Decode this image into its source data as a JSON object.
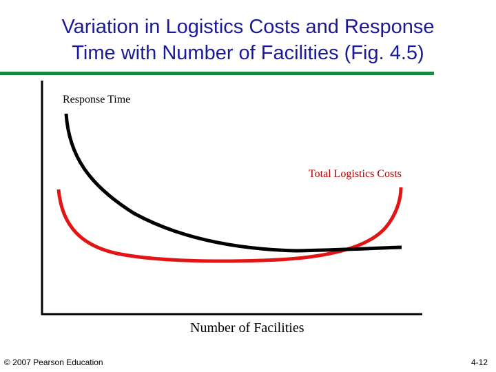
{
  "slide": {
    "title_lines": [
      "Variation in Logistics Costs and Response",
      "Time with Number of Facilities (Fig. 4.5)"
    ],
    "footer_left": "© 2007 Pearson Education",
    "footer_right": "4-12"
  },
  "diagram": {
    "y_label": "Response Time",
    "x_label": "Number of Facilities",
    "curve_labels": {
      "total_logistics_costs": "Total Logistics Costs"
    },
    "colors": {
      "title": "#1a1a99",
      "rule": "#138a3c",
      "response_time_curve": "#000000",
      "total_logistics_costs_curve": "#e31414"
    }
  }
}
